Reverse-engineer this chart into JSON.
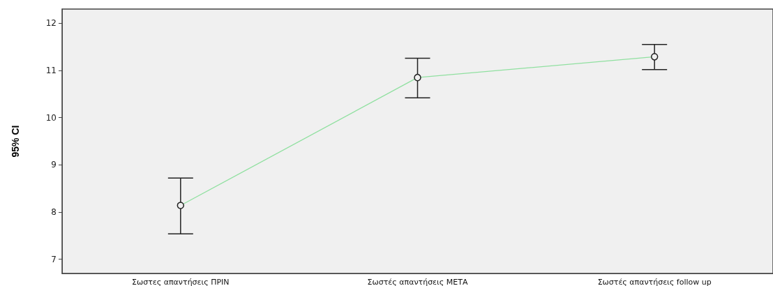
{
  "chart_data": {
    "type": "line",
    "ylabel": "95% CI",
    "categories": [
      "Σωστες απαντήσεις ΠΡΙΝ",
      "Σωστές απαντήσεις ΜΕΤΑ",
      "Σωστές απαντήσεις follow up"
    ],
    "color": "#90e0a0",
    "values": [
      8.14,
      10.85,
      11.29
    ],
    "errors": [
      [
        7.54,
        8.72
      ],
      [
        10.42,
        11.26
      ],
      [
        11.02,
        11.55
      ]
    ],
    "ylim": [
      6.7,
      12.3
    ],
    "yticks": [
      7,
      8,
      9,
      10,
      11,
      12
    ],
    "marker": "circle",
    "line_style": "solid"
  }
}
